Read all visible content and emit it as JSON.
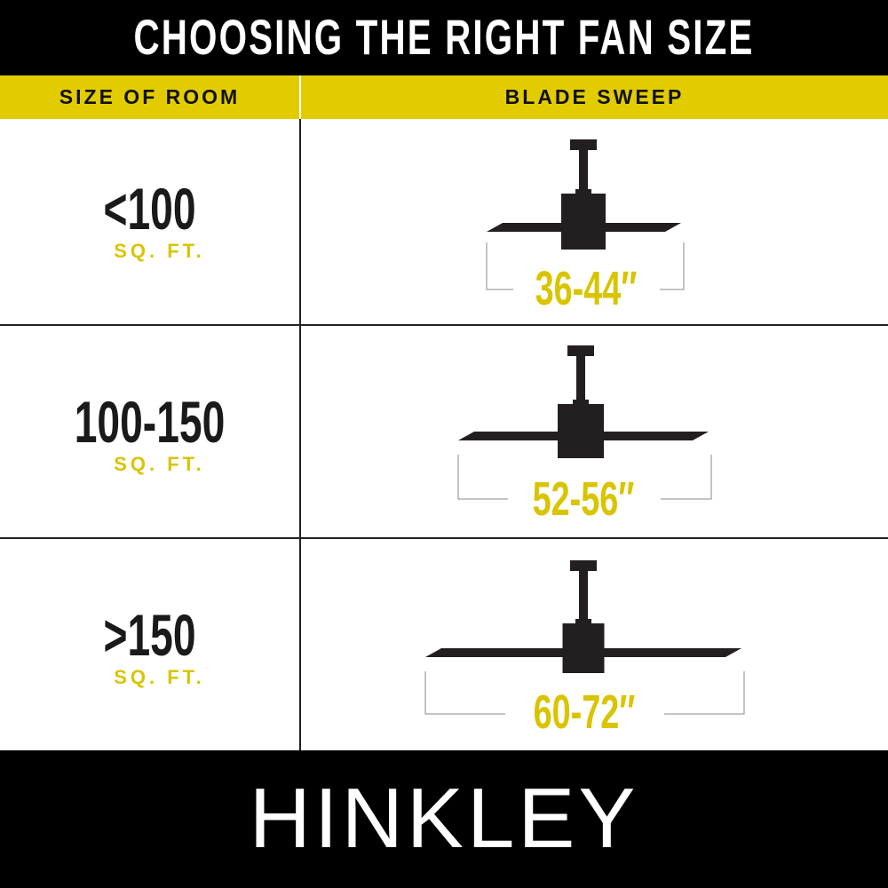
{
  "title": "CHOOSING THE RIGHT FAN SIZE",
  "headers": {
    "room": "SIZE OF ROOM",
    "sweep": "BLADE SWEEP"
  },
  "rows": [
    {
      "room": "<100",
      "unit": "SQ. FT.",
      "sweep": "36-44″"
    },
    {
      "room": "100-150",
      "unit": "SQ. FT.",
      "sweep": "52-56″"
    },
    {
      "room": ">150",
      "unit": "SQ. FT.",
      "sweep": "60-72″"
    }
  ],
  "brand": "HINKLEY",
  "colors": {
    "accent": "#e2cc00",
    "dark": "#231f20"
  },
  "icons": [
    "ceiling-fan-icon"
  ]
}
